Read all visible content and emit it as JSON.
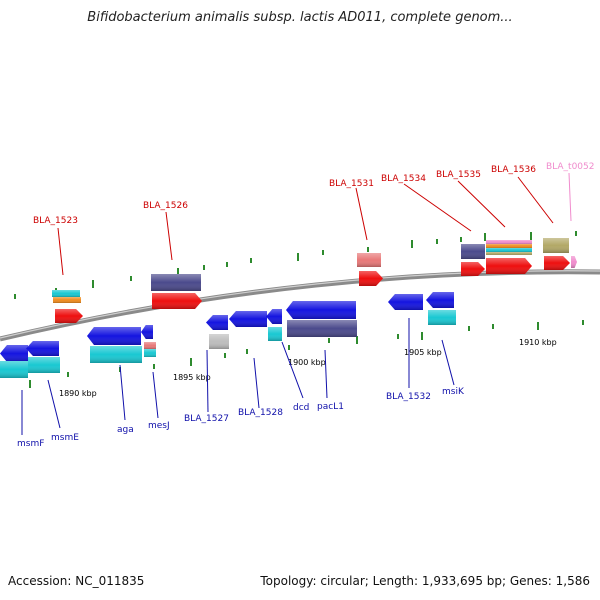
{
  "title": "Bifidobacterium animalis subsp. lactis AD011, complete genom...",
  "footer": {
    "accession": "Accession: NC_011835",
    "summary": "Topology: circular; Length: 1,933,695 bp; Genes: 1,586"
  },
  "colors": {
    "backbone": "#8a8a8a",
    "tick": "#2e8b2e",
    "blue_gene": "#1414e0",
    "slate_gene": "#4b4a8c",
    "red_gene": "#ee0f0f",
    "cyan_gene": "#19c8d2",
    "orange_gene": "#f08c1e",
    "salmon_gene": "#e87878",
    "gray_gene": "#bdbdbd",
    "khaki_gene": "#b2a866",
    "pink_gene": "#f08ccd",
    "upper_label": "#cc0000",
    "lower_label": "#1010aa",
    "trna_label": "#f08ccd"
  },
  "scale_labels": [
    "1890 kbp",
    "1895 kbp",
    "1900 kbp",
    "1905 kbp",
    "1910 kbp"
  ],
  "upper_labels": [
    {
      "text": "BLA_1523",
      "color": "upper_label"
    },
    {
      "text": "BLA_1526",
      "color": "upper_label"
    },
    {
      "text": "BLA_1531",
      "color": "upper_label"
    },
    {
      "text": "BLA_1534",
      "color": "upper_label"
    },
    {
      "text": "BLA_1535",
      "color": "upper_label"
    },
    {
      "text": "BLA_1536",
      "color": "upper_label"
    },
    {
      "text": "BLA_t0052",
      "color": "trna_label"
    }
  ],
  "lower_labels": [
    {
      "text": "msmF"
    },
    {
      "text": "msmE"
    },
    {
      "text": "aga"
    },
    {
      "text": "mesJ"
    },
    {
      "text": "BLA_1527"
    },
    {
      "text": "BLA_1528"
    },
    {
      "text": "dcd"
    },
    {
      "text": "pacL1"
    },
    {
      "text": "BLA_1532"
    },
    {
      "text": "msiK"
    }
  ]
}
